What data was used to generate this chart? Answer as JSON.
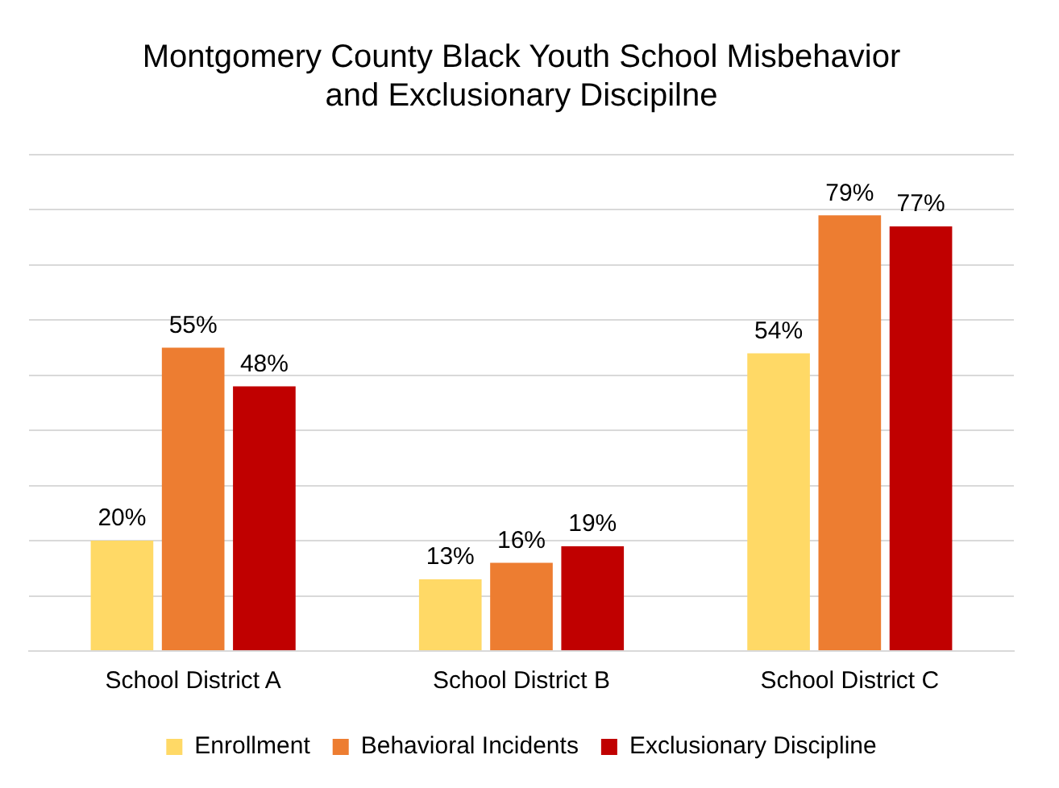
{
  "chart_data": {
    "type": "bar",
    "title": "Montgomery County Black Youth School Misbehavior\nand Exclusionary Discipilne",
    "categories": [
      "School District A",
      "School District B",
      "School District C"
    ],
    "series": [
      {
        "name": "Enrollment",
        "color": "#ffd966",
        "values": [
          20,
          13,
          54
        ],
        "value_labels": [
          "20%",
          "13%",
          "54%"
        ]
      },
      {
        "name": "Behavioral Incidents",
        "color": "#ed7d31",
        "values": [
          55,
          16,
          79
        ],
        "value_labels": [
          "55%",
          "16%",
          "79%"
        ]
      },
      {
        "name": "Exclusionary Discipline",
        "color": "#c00000",
        "values": [
          48,
          19,
          77
        ],
        "value_labels": [
          "48%",
          "19%",
          "77%"
        ]
      }
    ],
    "tick_labels": "x",
    "grid": "y",
    "legend": "bottom"
  }
}
